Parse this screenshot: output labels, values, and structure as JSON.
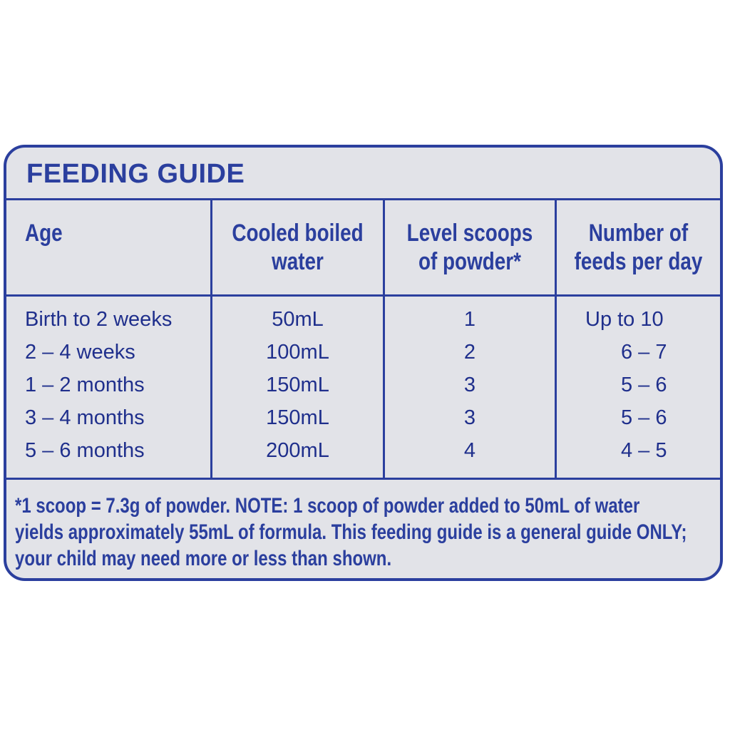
{
  "guide": {
    "title": "FEEDING GUIDE",
    "headers": {
      "age": "Age",
      "water_line1": "Cooled boiled",
      "water_line2": "water",
      "scoops_line1": "Level scoops",
      "scoops_line2": "of powder*",
      "feeds_line1": "Number of",
      "feeds_line2": "feeds per day"
    },
    "rows": [
      {
        "age": "Birth to 2 weeks",
        "water": "50mL",
        "scoops": "1",
        "feeds": "Up to 10"
      },
      {
        "age": "2 – 4 weeks",
        "water": "100mL",
        "scoops": "2",
        "feeds": "6 – 7"
      },
      {
        "age": "1 – 2 months",
        "water": "150mL",
        "scoops": "3",
        "feeds": "5 – 6"
      },
      {
        "age": "3 – 4 months",
        "water": "150mL",
        "scoops": "3",
        "feeds": "5 – 6"
      },
      {
        "age": "5 – 6 months",
        "water": "200mL",
        "scoops": "4",
        "feeds": "4 – 5"
      }
    ],
    "note": {
      "line1": "*1 scoop = 7.3g of powder. NOTE: 1 scoop of powder added to 50mL of water",
      "line2": "yields approximately 55mL of formula. This feeding guide is a general guide ONLY;",
      "line3": "your child may need more or less than shown."
    }
  },
  "colors": {
    "accent": "#2b3f9e",
    "panel_bg": "#e2e3e8"
  }
}
